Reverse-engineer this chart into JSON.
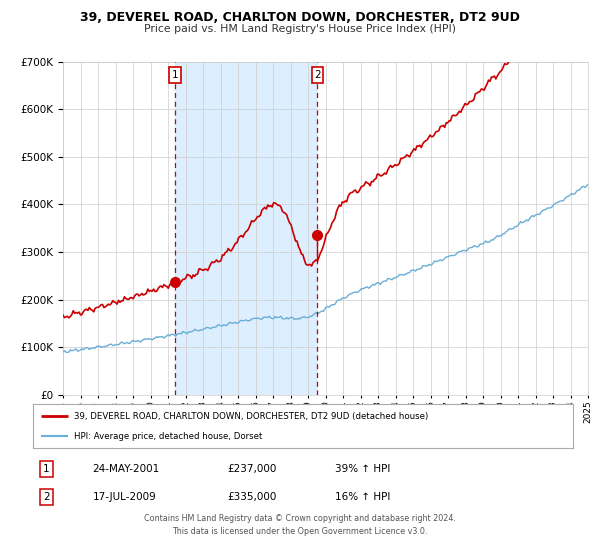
{
  "title": "39, DEVEREL ROAD, CHARLTON DOWN, DORCHESTER, DT2 9UD",
  "subtitle": "Price paid vs. HM Land Registry's House Price Index (HPI)",
  "legend_line1": "39, DEVEREL ROAD, CHARLTON DOWN, DORCHESTER, DT2 9UD (detached house)",
  "legend_line2": "HPI: Average price, detached house, Dorset",
  "table_row1": [
    "1",
    "24-MAY-2001",
    "£237,000",
    "39% ↑ HPI"
  ],
  "table_row2": [
    "2",
    "17-JUL-2009",
    "£335,000",
    "16% ↑ HPI"
  ],
  "footer": "Contains HM Land Registry data © Crown copyright and database right 2024.\nThis data is licensed under the Open Government Licence v3.0.",
  "sale1_year": 2001.39,
  "sale1_price": 237000,
  "sale2_year": 2009.54,
  "sale2_price": 335000,
  "vline1_year": 2001.39,
  "vline2_year": 2009.54,
  "shade_start": 2001.39,
  "shade_end": 2009.54,
  "ylim": [
    0,
    700000
  ],
  "xlim_start": 1995,
  "xlim_end": 2025,
  "hpi_color": "#6baed6",
  "price_color": "#cc0000",
  "shade_color": "#ddeeff",
  "grid_color": "#cccccc",
  "bg_color": "#ffffff"
}
